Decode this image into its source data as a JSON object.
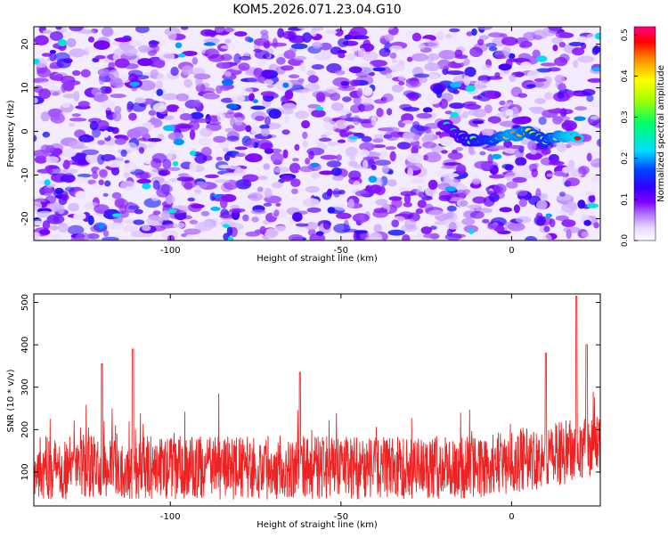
{
  "title": "KOM5.2026.071.23.04.G10",
  "chart_data": [
    {
      "type": "heatmap",
      "xlabel": "Height of straight line (km)",
      "ylabel": "Frequency (Hz)",
      "xlim": [
        -140,
        26
      ],
      "ylim": [
        -25,
        24
      ],
      "xticks": [
        -100,
        -50,
        0
      ],
      "yticks": [
        -20,
        -10,
        0,
        10,
        20
      ],
      "colorbar": {
        "label": "Normalized spectral amplitude",
        "range": [
          0,
          0.52
        ],
        "ticks": [
          0.0,
          0.1,
          0.2,
          0.3,
          0.4,
          0.5
        ],
        "colors": [
          "#ffffff",
          "#c59cff",
          "#7f00ff",
          "#3c1cff",
          "#0000ff",
          "#00ffff",
          "#00ff00",
          "#ffff00",
          "#ff7f00",
          "#ff0000",
          "#ff007f"
        ]
      },
      "trace": {
        "description_points": [
          {
            "x": -20,
            "y": 2,
            "v": 0.22
          },
          {
            "x": -16,
            "y": -1,
            "v": 0.25
          },
          {
            "x": -12,
            "y": -2,
            "v": 0.3
          },
          {
            "x": -6,
            "y": -2,
            "v": 0.35
          },
          {
            "x": 0,
            "y": -1,
            "v": 0.45
          },
          {
            "x": 5,
            "y": 0,
            "v": 0.4
          },
          {
            "x": 10,
            "y": -2,
            "v": 0.35
          },
          {
            "x": 15,
            "y": -1,
            "v": 0.45
          },
          {
            "x": 20,
            "y": -1.5,
            "v": 0.5
          }
        ]
      }
    },
    {
      "type": "line",
      "xlabel": "Height of straight line (km)",
      "ylabel": "SNR (10 * v/v)",
      "xlim": [
        -140,
        26
      ],
      "ylim": [
        20,
        520
      ],
      "xticks": [
        -100,
        -50,
        0
      ],
      "yticks": [
        100,
        200,
        300,
        400,
        500
      ],
      "series_color": "#ee2222",
      "baseline": 110,
      "peaks": [
        {
          "x": -120,
          "y": 355
        },
        {
          "x": -111,
          "y": 390
        },
        {
          "x": -62,
          "y": 335
        },
        {
          "x": 10,
          "y": 380
        },
        {
          "x": 19,
          "y": 515
        },
        {
          "x": 22,
          "y": 400
        }
      ]
    }
  ]
}
